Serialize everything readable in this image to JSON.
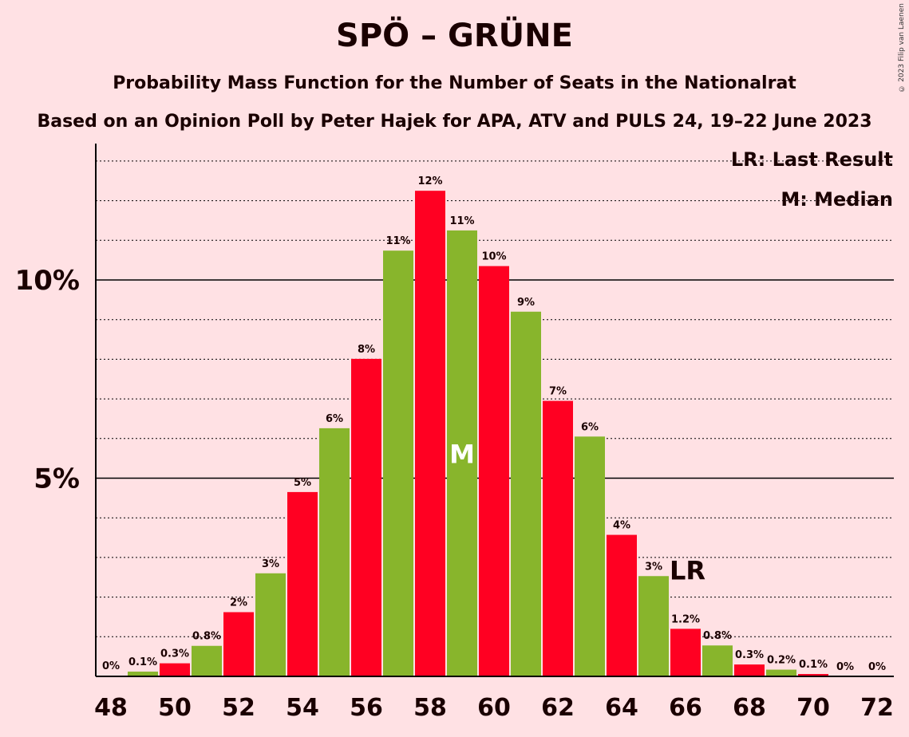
{
  "header": {
    "title": "SPÖ – GRÜNE",
    "subtitle1": "Probability Mass Function for the Number of Seats in the Nationalrat",
    "subtitle2": "Based on an Opinion Poll by Peter Hajek for APA, ATV and PULS 24, 19–22 June 2023",
    "copyright": "© 2023 Filip van Laenen"
  },
  "legend": {
    "lr": "LR: Last Result",
    "m": "M: Median"
  },
  "chart_data": {
    "type": "bar",
    "x": [
      48,
      49,
      50,
      51,
      52,
      53,
      54,
      55,
      56,
      57,
      58,
      59,
      60,
      61,
      62,
      63,
      64,
      65,
      66,
      67,
      68,
      69,
      70,
      71,
      72
    ],
    "values": [
      0.02,
      0.12,
      0.33,
      0.77,
      1.62,
      2.6,
      4.65,
      6.26,
      8.01,
      10.74,
      12.25,
      11.25,
      10.35,
      9.2,
      6.95,
      6.05,
      3.57,
      2.53,
      1.2,
      0.78,
      0.3,
      0.17,
      0.06,
      0.0,
      0.0
    ],
    "labels": [
      "0%",
      "0.1%",
      "0.3%",
      "0.8%",
      "2%",
      "3%",
      "5%",
      "6%",
      "8%",
      "11%",
      "12%",
      "11%",
      "10%",
      "9%",
      "7%",
      "6%",
      "4%",
      "3%",
      "1.2%",
      "0.8%",
      "0.3%",
      "0.2%",
      "0.1%",
      "0%",
      "0%"
    ],
    "x_tick_labels": [
      "48",
      "50",
      "52",
      "54",
      "56",
      "58",
      "60",
      "62",
      "64",
      "66",
      "68",
      "70",
      "72"
    ],
    "y_tick_labels": [
      "5%",
      "10%"
    ],
    "y_ticks": [
      5,
      10
    ],
    "ylim": [
      0,
      13.4
    ],
    "median_seat": 59,
    "median_marker": "M",
    "last_result_seat": 66,
    "last_result_marker": "LR",
    "colors": {
      "red": "#ff0022",
      "green": "#88b52c",
      "axis": "#000000"
    }
  }
}
